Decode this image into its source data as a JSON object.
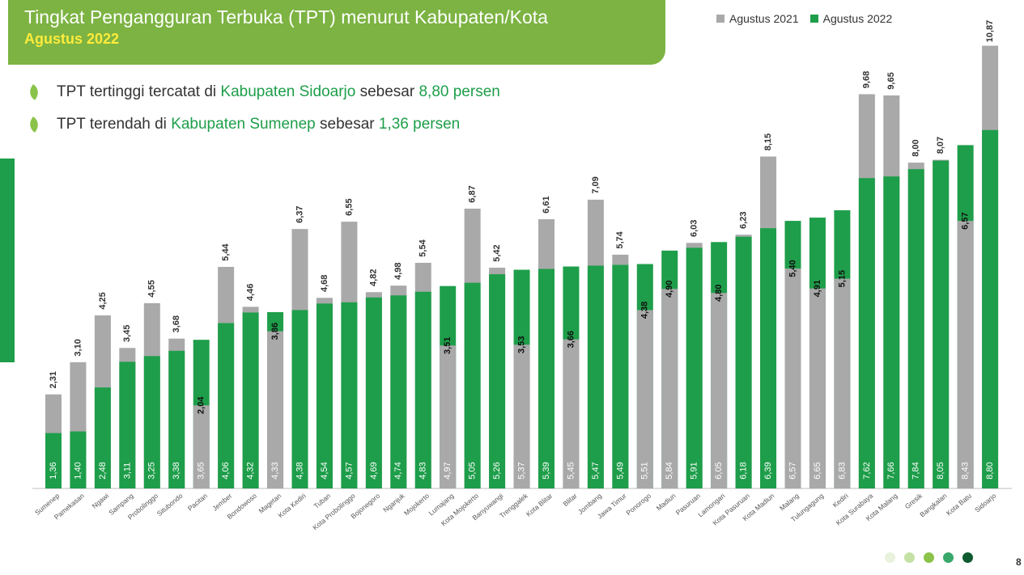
{
  "header": {
    "title": "Tingkat Pengangguran Terbuka (TPT) menurut Kabupaten/Kota",
    "subtitle": "Agustus 2022"
  },
  "bullets": [
    {
      "prefix": "TPT tertinggi tercatat di ",
      "highlight1": "Kabupaten Sidoarjo",
      "middle": " sebesar ",
      "highlight2": "8,80 persen"
    },
    {
      "prefix": "TPT terendah di ",
      "highlight1": "Kabupaten Sumenep",
      "middle": " sebesar ",
      "highlight2": "1,36 persen"
    }
  ],
  "colors": {
    "banner": "#7cb342",
    "subtitle": "#ffeb3b",
    "series_2021": "#a9a9a9",
    "series_2022": "#1e9e4a",
    "highlight": "#1e9e4a"
  },
  "footer": {
    "page_number": "8",
    "dots": [
      "#e8f2dc",
      "#c5e1a5",
      "#8bc34a",
      "#3aa86b",
      "#0f5a30"
    ]
  },
  "chart_data": {
    "type": "bar",
    "categories": [
      "Sumenep",
      "Pamekasan",
      "Ngawi",
      "Sampang",
      "Probolinggo",
      "Situbondo",
      "Pacitan",
      "Jember",
      "Bondowoso",
      "Magetan",
      "Kota Kediri",
      "Tuban",
      "Kota Probolinggo",
      "Bojonegoro",
      "Nganjuk",
      "Mojokerto",
      "Lumajang",
      "Kota Mojokerto",
      "Banyuwangi",
      "Trenggalek",
      "Kota Blitar",
      "Blitar",
      "Jombang",
      "Jawa Timur",
      "Ponorogo",
      "Madiun",
      "Pasuruan",
      "Lamongan",
      "Kota Pasuruan",
      "Kota Madiun",
      "Malang",
      "Tulungagung",
      "Kediri",
      "Kota Surabaya",
      "Kota Malang",
      "Gresik",
      "Bangkalan",
      "Kota Batu",
      "Sidoarjo"
    ],
    "series": [
      {
        "name": "Agustus 2021",
        "values": [
          2.31,
          3.1,
          4.25,
          3.45,
          4.55,
          3.68,
          2.04,
          5.44,
          4.46,
          3.86,
          6.37,
          4.68,
          6.55,
          4.82,
          4.98,
          5.54,
          3.51,
          6.87,
          5.42,
          3.53,
          6.61,
          3.66,
          7.09,
          5.74,
          4.38,
          4.9,
          6.03,
          4.8,
          6.23,
          8.15,
          5.4,
          4.91,
          5.15,
          9.68,
          9.65,
          8.0,
          8.07,
          6.57,
          10.87
        ],
        "labels": [
          "2,31",
          "3,10",
          "4,25",
          "3,45",
          "4,55",
          "3,68",
          "2,04",
          "5,44",
          "4,46",
          "3,86",
          "6,37",
          "4,68",
          "6,55",
          "4,82",
          "4,98",
          "5,54",
          "3,51",
          "6,87",
          "5,42",
          "3,53",
          "6,61",
          "3,66",
          "7,09",
          "5,74",
          "4,38",
          "4,90",
          "6,03",
          "4,80",
          "6,23",
          "8,15",
          "5,40",
          "4,91",
          "5,15",
          "9,68",
          "9,65",
          "8,00",
          "8,07",
          "6,57",
          "10,87"
        ]
      },
      {
        "name": "Agustus 2022",
        "values": [
          1.36,
          1.4,
          2.48,
          3.11,
          3.25,
          3.38,
          3.65,
          4.06,
          4.32,
          4.33,
          4.38,
          4.54,
          4.57,
          4.69,
          4.74,
          4.83,
          4.97,
          5.05,
          5.26,
          5.37,
          5.39,
          5.45,
          5.47,
          5.49,
          5.51,
          5.84,
          5.91,
          6.05,
          6.18,
          6.39,
          6.57,
          6.65,
          6.83,
          7.62,
          7.66,
          7.84,
          8.05,
          8.43,
          8.8
        ],
        "labels": [
          "1,36",
          "1,40",
          "2,48",
          "3,11",
          "3,25",
          "3,38",
          "3,65",
          "4,06",
          "4,32",
          "4,33",
          "4,38",
          "4,54",
          "4,57",
          "4,69",
          "4,74",
          "4,83",
          "4,97",
          "5,05",
          "5,26",
          "5,37",
          "5,39",
          "5,45",
          "5,47",
          "5,49",
          "5,51",
          "5,84",
          "5,91",
          "6,05",
          "6,18",
          "6,39",
          "6,57",
          "6,65",
          "6,83",
          "7,62",
          "7,66",
          "7,84",
          "8,05",
          "8,43",
          "8,80"
        ]
      }
    ],
    "ylim": [
      0,
      11
    ],
    "grid": false,
    "legend": "top-right"
  }
}
